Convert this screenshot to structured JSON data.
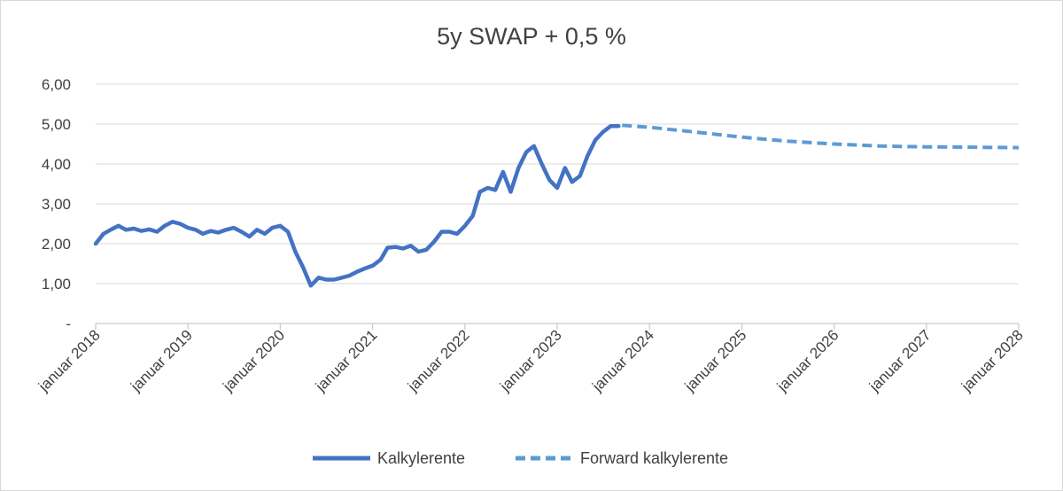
{
  "chart_data": {
    "type": "line",
    "title": "5y SWAP + 0,5 %",
    "xlabel": "",
    "ylabel": "",
    "ylim": [
      0,
      6
    ],
    "xlim": [
      "2018-01-01",
      "2028-01-01"
    ],
    "grid": true,
    "legend_position": "bottom",
    "y_ticks": [
      {
        "value": 0,
        "label": "-"
      },
      {
        "value": 1,
        "label": "1,00"
      },
      {
        "value": 2,
        "label": "2,00"
      },
      {
        "value": 3,
        "label": "3,00"
      },
      {
        "value": 4,
        "label": "4,00"
      },
      {
        "value": 5,
        "label": "5,00"
      },
      {
        "value": 6,
        "label": "6,00"
      }
    ],
    "x_ticks": [
      {
        "date": "2018-01-01",
        "label": "januar 2018"
      },
      {
        "date": "2019-01-01",
        "label": "januar 2019"
      },
      {
        "date": "2020-01-01",
        "label": "januar 2020"
      },
      {
        "date": "2021-01-01",
        "label": "januar 2021"
      },
      {
        "date": "2022-01-01",
        "label": "januar 2022"
      },
      {
        "date": "2023-01-01",
        "label": "januar 2023"
      },
      {
        "date": "2024-01-01",
        "label": "januar 2024"
      },
      {
        "date": "2025-01-01",
        "label": "januar 2025"
      },
      {
        "date": "2026-01-01",
        "label": "januar 2026"
      },
      {
        "date": "2027-01-01",
        "label": "januar 2027"
      },
      {
        "date": "2028-01-01",
        "label": "januar 2028"
      }
    ],
    "series": [
      {
        "name": "Kalkylerente",
        "color": "#4472c4",
        "style": "solid",
        "points": [
          [
            "2018-01-01",
            2.0
          ],
          [
            "2018-02-01",
            2.25
          ],
          [
            "2018-03-01",
            2.35
          ],
          [
            "2018-04-01",
            2.45
          ],
          [
            "2018-05-01",
            2.35
          ],
          [
            "2018-06-01",
            2.38
          ],
          [
            "2018-07-01",
            2.32
          ],
          [
            "2018-08-01",
            2.36
          ],
          [
            "2018-09-01",
            2.3
          ],
          [
            "2018-10-01",
            2.45
          ],
          [
            "2018-11-01",
            2.55
          ],
          [
            "2018-12-01",
            2.5
          ],
          [
            "2019-01-01",
            2.4
          ],
          [
            "2019-02-01",
            2.35
          ],
          [
            "2019-03-01",
            2.25
          ],
          [
            "2019-04-01",
            2.32
          ],
          [
            "2019-05-01",
            2.28
          ],
          [
            "2019-06-01",
            2.35
          ],
          [
            "2019-07-01",
            2.4
          ],
          [
            "2019-08-01",
            2.3
          ],
          [
            "2019-09-01",
            2.18
          ],
          [
            "2019-10-01",
            2.35
          ],
          [
            "2019-11-01",
            2.25
          ],
          [
            "2019-12-01",
            2.4
          ],
          [
            "2020-01-01",
            2.45
          ],
          [
            "2020-02-01",
            2.3
          ],
          [
            "2020-03-01",
            1.8
          ],
          [
            "2020-04-01",
            1.4
          ],
          [
            "2020-05-01",
            0.95
          ],
          [
            "2020-06-01",
            1.15
          ],
          [
            "2020-07-01",
            1.1
          ],
          [
            "2020-08-01",
            1.1
          ],
          [
            "2020-09-01",
            1.15
          ],
          [
            "2020-10-01",
            1.2
          ],
          [
            "2020-11-01",
            1.3
          ],
          [
            "2020-12-01",
            1.38
          ],
          [
            "2021-01-01",
            1.45
          ],
          [
            "2021-02-01",
            1.6
          ],
          [
            "2021-03-01",
            1.9
          ],
          [
            "2021-04-01",
            1.92
          ],
          [
            "2021-05-01",
            1.88
          ],
          [
            "2021-06-01",
            1.95
          ],
          [
            "2021-07-01",
            1.8
          ],
          [
            "2021-08-01",
            1.85
          ],
          [
            "2021-09-01",
            2.05
          ],
          [
            "2021-10-01",
            2.3
          ],
          [
            "2021-11-01",
            2.3
          ],
          [
            "2021-12-01",
            2.25
          ],
          [
            "2022-01-01",
            2.45
          ],
          [
            "2022-02-01",
            2.7
          ],
          [
            "2022-03-01",
            3.3
          ],
          [
            "2022-04-01",
            3.4
          ],
          [
            "2022-05-01",
            3.35
          ],
          [
            "2022-06-01",
            3.8
          ],
          [
            "2022-07-01",
            3.3
          ],
          [
            "2022-08-01",
            3.9
          ],
          [
            "2022-09-01",
            4.3
          ],
          [
            "2022-10-01",
            4.45
          ],
          [
            "2022-11-01",
            4.0
          ],
          [
            "2022-12-01",
            3.6
          ],
          [
            "2023-01-01",
            3.4
          ],
          [
            "2023-02-01",
            3.9
          ],
          [
            "2023-03-01",
            3.55
          ],
          [
            "2023-04-01",
            3.7
          ],
          [
            "2023-05-01",
            4.2
          ],
          [
            "2023-06-01",
            4.6
          ],
          [
            "2023-07-01",
            4.8
          ],
          [
            "2023-08-01",
            4.95
          ],
          [
            "2023-09-01",
            4.95
          ]
        ]
      },
      {
        "name": "Forward kalkylerente",
        "color": "#5b9bd5",
        "style": "dashed",
        "points": [
          [
            "2023-09-15",
            4.97
          ],
          [
            "2024-01-01",
            4.92
          ],
          [
            "2024-07-01",
            4.8
          ],
          [
            "2025-01-01",
            4.67
          ],
          [
            "2025-07-01",
            4.57
          ],
          [
            "2026-01-01",
            4.5
          ],
          [
            "2026-07-01",
            4.45
          ],
          [
            "2027-01-01",
            4.43
          ],
          [
            "2027-07-01",
            4.42
          ],
          [
            "2028-01-01",
            4.41
          ]
        ]
      }
    ]
  }
}
